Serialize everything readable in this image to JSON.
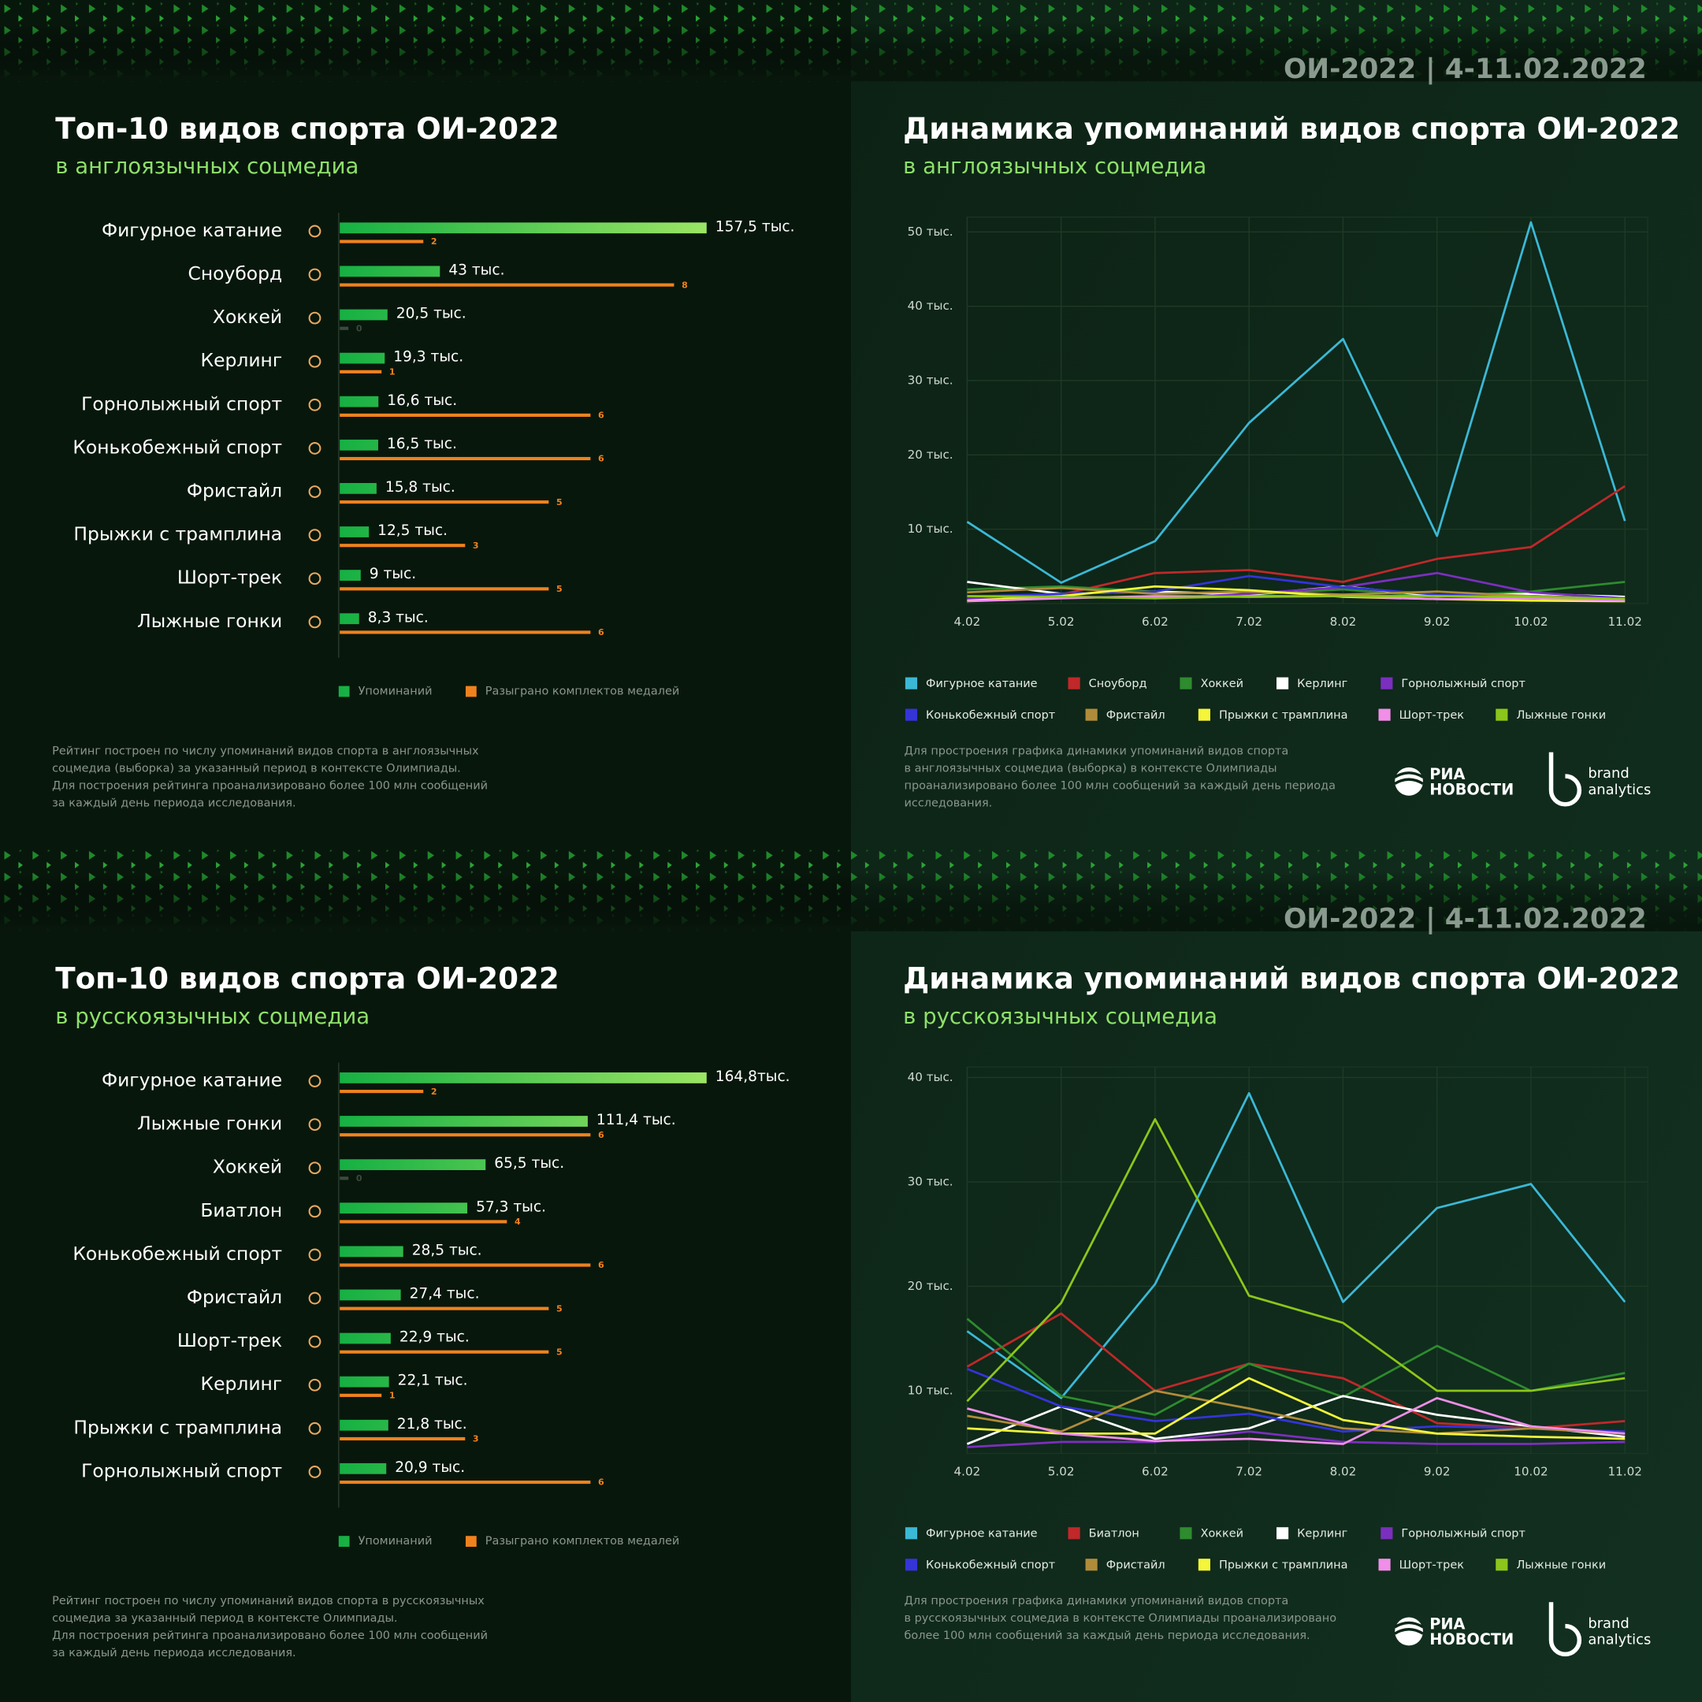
{
  "chart_data": [
    {
      "type": "bar",
      "title": "Топ-10 видов спорта ОИ-2022",
      "subtitle": "в англоязычных соцмедиа",
      "categories": [
        "Фигурное катание",
        "Сноуборд",
        "Хоккей",
        "Керлинг",
        "Горнолыжный спорт",
        "Конькобежный спорт",
        "Фристайл",
        "Прыжки с трамплина",
        "Шорт-трек",
        "Лыжные гонки"
      ],
      "series": [
        {
          "name": "Упоминаний",
          "color": "#9be564",
          "values": [
            157500,
            43000,
            20500,
            19300,
            16600,
            16500,
            15800,
            12500,
            9000,
            8300
          ],
          "value_labels": [
            "157,5 тыс.",
            "43 тыс.",
            "20,5 тыс.",
            "19,3 тыс.",
            "16,6 тыс.",
            "16,5 тыс.",
            "15,8 тыс.",
            "12,5 тыс.",
            "9 тыс.",
            "8,3 тыс."
          ]
        },
        {
          "name": "Разыграно комплектов медалей",
          "color": "#f0821e",
          "values": [
            2,
            8,
            0,
            1,
            6,
            6,
            5,
            3,
            5,
            6
          ]
        }
      ],
      "note": [
        "Рейтинг построен по числу упоминаний видов спорта в англоязычных",
        "соцмедиа (выборка) за указанный период в контексте Олимпиады.",
        "Для построения рейтинга проанализировано более 100 млн сообщений",
        "за каждый день периода исследования."
      ]
    },
    {
      "type": "line",
      "header": "ОИ-2022 | 4-11.02.2022",
      "title": "Динамика упоминаний видов спорта ОИ-2022",
      "subtitle": "в англоязычных соцмедиа",
      "categories": [
        "4.02",
        "5.02",
        "6.02",
        "7.02",
        "8.02",
        "9.02",
        "10.02",
        "11.02"
      ],
      "ylim": [
        0,
        52000
      ],
      "yticks": [
        {
          "value": 10000,
          "label": "10 тыс."
        },
        {
          "value": 20000,
          "label": "20 тыс."
        },
        {
          "value": 30000,
          "label": "30 тыс."
        },
        {
          "value": 40000,
          "label": "40 тыс."
        },
        {
          "value": 50000,
          "label": "50 тыс."
        }
      ],
      "grid": true,
      "series": [
        {
          "name": "Фигурное катание",
          "color": "#3bb8d6",
          "values": [
            11000,
            2800,
            8400,
            24300,
            35600,
            9100,
            51300,
            11100
          ]
        },
        {
          "name": "Сноуборд",
          "color": "#c0282a",
          "values": [
            400,
            1200,
            4100,
            4500,
            2900,
            6000,
            7600,
            15800
          ]
        },
        {
          "name": "Хоккей",
          "color": "#2e8b2e",
          "values": [
            1900,
            2300,
            1600,
            1200,
            1900,
            900,
            1600,
            2900
          ]
        },
        {
          "name": "Керлинг",
          "color": "#ffffff",
          "values": [
            2900,
            1300,
            1600,
            1200,
            2300,
            1000,
            1300,
            900
          ]
        },
        {
          "name": "Горнолыжный спорт",
          "color": "#7b2fbe",
          "values": [
            600,
            1000,
            700,
            1300,
            2200,
            4100,
            1500,
            700
          ]
        },
        {
          "name": "Конькобежный спорт",
          "color": "#3434d8",
          "values": [
            900,
            1300,
            1600,
            3700,
            2200,
            1200,
            1000,
            700
          ]
        },
        {
          "name": "Фристайл",
          "color": "#b08c3a",
          "values": [
            1500,
            2100,
            1300,
            1600,
            1200,
            1600,
            1000,
            600
          ]
        },
        {
          "name": "Прыжки с трамплина",
          "color": "#f5f53a",
          "values": [
            400,
            1000,
            2300,
            1800,
            900,
            600,
            400,
            300
          ]
        },
        {
          "name": "Шорт-трек",
          "color": "#f08ee8",
          "values": [
            300,
            700,
            1000,
            900,
            1000,
            600,
            700,
            400
          ]
        },
        {
          "name": "Лыжные гонки",
          "color": "#8cc61a",
          "values": [
            1000,
            900,
            700,
            1000,
            1000,
            1000,
            900,
            600
          ]
        }
      ],
      "note": [
        "Для простроения графика динамики упоминаний видов спорта",
        "в англоязычных соцмедиа (выборка) в контексте Олимпиады",
        "проанализировано более 100 млн сообщений за каждый день периода",
        "исследования."
      ],
      "logos": [
        "РИА",
        "НОВОСТИ",
        "brand",
        "analytics"
      ]
    },
    {
      "type": "bar",
      "title": "Топ-10 видов спорта ОИ-2022",
      "subtitle": "в русскоязычных соцмедиа",
      "categories": [
        "Фигурное катание",
        "Лыжные гонки",
        "Хоккей",
        "Биатлон",
        "Конькобежный спорт",
        "Фристайл",
        "Шорт-трек",
        "Керлинг",
        "Прыжки с трамплина",
        "Горнолыжный спорт"
      ],
      "series": [
        {
          "name": "Упоминаний",
          "color": "#9be564",
          "values": [
            164800,
            111400,
            65500,
            57300,
            28500,
            27400,
            22900,
            22100,
            21800,
            20900
          ],
          "value_labels": [
            "164,8тыс.",
            "111,4 тыс.",
            "65,5 тыс.",
            "57,3 тыс.",
            "28,5 тыс.",
            "27,4 тыс.",
            "22,9 тыс.",
            "22,1 тыс.",
            "21,8 тыс.",
            "20,9 тыс."
          ]
        },
        {
          "name": "Разыграно комплектов медалей",
          "color": "#f0821e",
          "values": [
            2,
            6,
            0,
            4,
            6,
            5,
            5,
            1,
            3,
            6
          ]
        }
      ],
      "note": [
        "Рейтинг построен по числу упоминаний видов спорта в русскоязычных",
        "соцмедиа за указанный период в контексте Олимпиады.",
        "Для построения рейтинга проанализировано более 100 млн сообщений",
        "за каждый день периода исследования."
      ]
    },
    {
      "type": "line",
      "header": "ОИ-2022 | 4-11.02.2022",
      "title": "Динамика упоминаний видов спорта ОИ-2022",
      "subtitle": "в русскоязычных соцмедиа",
      "categories": [
        "4.02",
        "5.02",
        "6.02",
        "7.02",
        "8.02",
        "9.02",
        "10.02",
        "11.02"
      ],
      "ylim": [
        4000,
        41000
      ],
      "yticks": [
        {
          "value": 10000,
          "label": "10 тыс."
        },
        {
          "value": 20000,
          "label": "20 тыс."
        },
        {
          "value": 30000,
          "label": "30 тыс."
        },
        {
          "value": 40000,
          "label": "40 тыс."
        }
      ],
      "grid": true,
      "series": [
        {
          "name": "Фигурное катание",
          "color": "#3bb8d6",
          "values": [
            15700,
            9300,
            20200,
            38500,
            18500,
            27500,
            29800,
            18500
          ]
        },
        {
          "name": "Биатлон",
          "color": "#c0282a",
          "values": [
            12300,
            17400,
            10000,
            12600,
            11200,
            6900,
            6400,
            7100
          ]
        },
        {
          "name": "Хоккей",
          "color": "#2e8b2e",
          "values": [
            16900,
            9500,
            7700,
            12600,
            9400,
            14300,
            10000,
            11700
          ]
        },
        {
          "name": "Керлинг",
          "color": "#ffffff",
          "values": [
            4900,
            8500,
            5400,
            6400,
            9500,
            7700,
            6600,
            5600
          ]
        },
        {
          "name": "Горнолыжный спорт",
          "color": "#7b2fbe",
          "values": [
            4600,
            5100,
            5100,
            6100,
            5100,
            4900,
            4900,
            5100
          ]
        },
        {
          "name": "Конькобежный спорт",
          "color": "#3434d8",
          "values": [
            12100,
            8500,
            7100,
            7800,
            6100,
            6600,
            6400,
            6100
          ]
        },
        {
          "name": "Фристайл",
          "color": "#b08c3a",
          "values": [
            7600,
            6100,
            10000,
            8300,
            6400,
            5900,
            6400,
            5900
          ]
        },
        {
          "name": "Прыжки с трамплина",
          "color": "#f5f53a",
          "values": [
            6400,
            5900,
            5900,
            11200,
            7200,
            5900,
            5600,
            5400
          ]
        },
        {
          "name": "Шорт-трек",
          "color": "#f08ee8",
          "values": [
            8300,
            5900,
            5200,
            5400,
            4900,
            9300,
            6600,
            5900
          ]
        },
        {
          "name": "Лыжные гонки",
          "color": "#8cc61a",
          "values": [
            9000,
            18400,
            36000,
            19100,
            16500,
            10000,
            10000,
            11200
          ]
        }
      ],
      "note": [
        "Для простроения графика динамики упоминаний видов спорта",
        "в русскоязычных соцмедиа в контексте Олимпиады проанализировано",
        "более 100 млн сообщений за каждый день периода исследования."
      ],
      "logos": [
        "РИА",
        "НОВОСТИ",
        "brand",
        "analytics"
      ]
    }
  ]
}
